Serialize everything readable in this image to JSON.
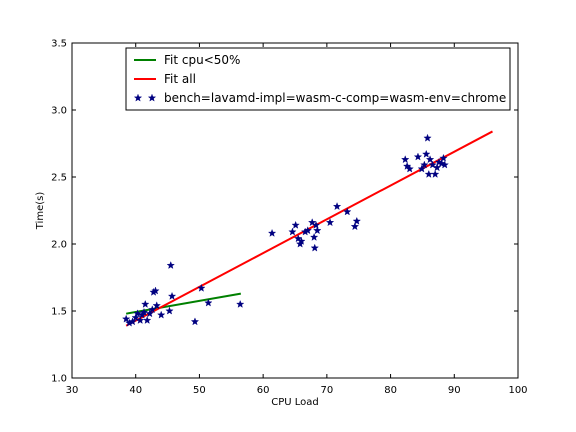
{
  "chart_data": {
    "type": "scatter",
    "xlabel": "CPU Load",
    "ylabel": "Time(s)",
    "xlim": [
      30,
      100
    ],
    "ylim": [
      1.0,
      3.5
    ],
    "x_ticks": [
      30,
      40,
      50,
      60,
      70,
      80,
      90,
      100
    ],
    "y_ticks": [
      1.0,
      1.5,
      2.0,
      2.5,
      3.0,
      3.5
    ],
    "x_tick_labels": [
      "30",
      "40",
      "50",
      "60",
      "70",
      "80",
      "90",
      "100"
    ],
    "y_tick_labels": [
      "1.0",
      "1.5",
      "2.0",
      "2.5",
      "3.0",
      "3.5"
    ],
    "grid": false,
    "legend_placement": "top-center",
    "series": [
      {
        "name": "Fit cpu<50%",
        "type": "line",
        "color": "#008000",
        "points": [
          [
            38.5,
            1.48
          ],
          [
            56.5,
            1.63
          ]
        ]
      },
      {
        "name": "Fit all",
        "type": "line",
        "color": "#ff0000",
        "points": [
          [
            38.5,
            1.39
          ],
          [
            96.0,
            2.84
          ]
        ]
      },
      {
        "name": "bench=lavamd-impl=wasm-c-comp=wasm-env=chrome",
        "type": "scatter",
        "marker": "star",
        "color": "#000080",
        "points": [
          [
            38.5,
            1.44
          ],
          [
            39.0,
            1.41
          ],
          [
            39.5,
            1.42
          ],
          [
            40.0,
            1.45
          ],
          [
            40.3,
            1.48
          ],
          [
            40.7,
            1.43
          ],
          [
            41.0,
            1.47
          ],
          [
            41.3,
            1.49
          ],
          [
            41.5,
            1.55
          ],
          [
            41.8,
            1.43
          ],
          [
            42.2,
            1.48
          ],
          [
            42.6,
            1.51
          ],
          [
            42.8,
            1.64
          ],
          [
            43.1,
            1.65
          ],
          [
            43.3,
            1.54
          ],
          [
            44.0,
            1.47
          ],
          [
            45.3,
            1.5
          ],
          [
            45.5,
            1.84
          ],
          [
            45.7,
            1.61
          ],
          [
            49.3,
            1.42
          ],
          [
            50.3,
            1.67
          ],
          [
            51.4,
            1.56
          ],
          [
            56.4,
            1.55
          ],
          [
            61.4,
            2.08
          ],
          [
            64.6,
            2.09
          ],
          [
            65.1,
            2.14
          ],
          [
            65.5,
            2.04
          ],
          [
            65.8,
            2.0
          ],
          [
            66.0,
            2.02
          ],
          [
            66.6,
            2.09
          ],
          [
            67.0,
            2.1
          ],
          [
            67.7,
            2.16
          ],
          [
            68.0,
            2.05
          ],
          [
            68.1,
            1.97
          ],
          [
            68.3,
            2.14
          ],
          [
            68.5,
            2.1
          ],
          [
            70.5,
            2.16
          ],
          [
            71.6,
            2.28
          ],
          [
            73.2,
            2.24
          ],
          [
            74.4,
            2.13
          ],
          [
            74.7,
            2.17
          ],
          [
            82.3,
            2.63
          ],
          [
            82.6,
            2.58
          ],
          [
            83.0,
            2.56
          ],
          [
            84.3,
            2.65
          ],
          [
            84.9,
            2.56
          ],
          [
            85.3,
            2.59
          ],
          [
            85.6,
            2.67
          ],
          [
            85.8,
            2.79
          ],
          [
            86.0,
            2.52
          ],
          [
            86.2,
            2.63
          ],
          [
            86.6,
            2.59
          ],
          [
            87.0,
            2.52
          ],
          [
            87.3,
            2.57
          ],
          [
            87.6,
            2.61
          ],
          [
            88.0,
            2.6
          ],
          [
            88.3,
            2.64
          ],
          [
            88.5,
            2.59
          ]
        ]
      }
    ]
  }
}
